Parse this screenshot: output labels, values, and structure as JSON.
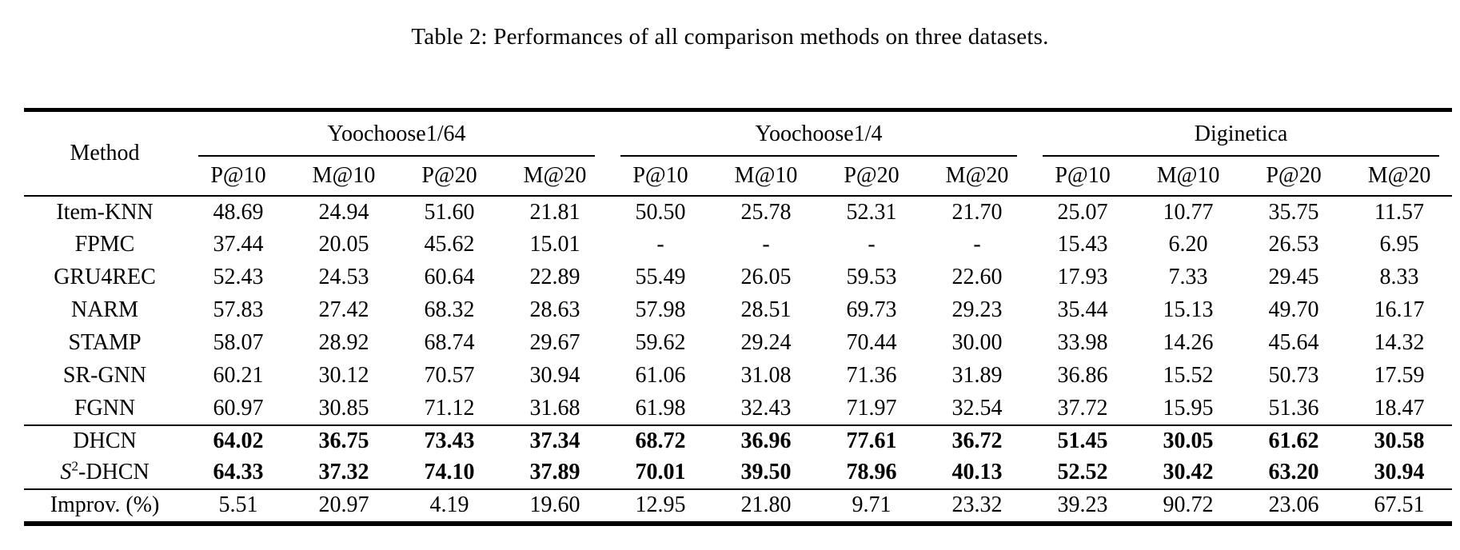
{
  "caption": "Table 2: Performances of all comparison methods on three datasets.",
  "colors": {
    "background": "#ffffff",
    "text": "#000000",
    "rule": "#000000"
  },
  "table": {
    "method_header": "Method",
    "groups": [
      {
        "label": "Yoochoose1/64"
      },
      {
        "label": "Yoochoose1/4"
      },
      {
        "label": "Diginetica"
      }
    ],
    "metric_headers": [
      "P@10",
      "M@10",
      "P@20",
      "M@20"
    ],
    "sections": [
      {
        "name": "baselines",
        "bold_values": false,
        "rows": [
          {
            "method": "Item-KNN",
            "values": [
              "48.69",
              "24.94",
              "51.60",
              "21.81",
              "50.50",
              "25.78",
              "52.31",
              "21.70",
              "25.07",
              "10.77",
              "35.75",
              "11.57"
            ]
          },
          {
            "method": "FPMC",
            "values": [
              "37.44",
              "20.05",
              "45.62",
              "15.01",
              "-",
              "-",
              "-",
              "-",
              "15.43",
              "6.20",
              "26.53",
              "6.95"
            ]
          },
          {
            "method": "GRU4REC",
            "values": [
              "52.43",
              "24.53",
              "60.64",
              "22.89",
              "55.49",
              "26.05",
              "59.53",
              "22.60",
              "17.93",
              "7.33",
              "29.45",
              "8.33"
            ]
          },
          {
            "method": "NARM",
            "values": [
              "57.83",
              "27.42",
              "68.32",
              "28.63",
              "57.98",
              "28.51",
              "69.73",
              "29.23",
              "35.44",
              "15.13",
              "49.70",
              "16.17"
            ]
          },
          {
            "method": "STAMP",
            "values": [
              "58.07",
              "28.92",
              "68.74",
              "29.67",
              "59.62",
              "29.24",
              "70.44",
              "30.00",
              "33.98",
              "14.26",
              "45.64",
              "14.32"
            ]
          },
          {
            "method": "SR-GNN",
            "values": [
              "60.21",
              "30.12",
              "70.57",
              "30.94",
              "61.06",
              "31.08",
              "71.36",
              "31.89",
              "36.86",
              "15.52",
              "50.73",
              "17.59"
            ]
          },
          {
            "method": "FGNN",
            "values": [
              "60.97",
              "30.85",
              "71.12",
              "31.68",
              "61.98",
              "32.43",
              "71.97",
              "32.54",
              "37.72",
              "15.95",
              "51.36",
              "18.47"
            ]
          }
        ]
      },
      {
        "name": "proposed",
        "bold_values": true,
        "rows": [
          {
            "method": "DHCN",
            "values": [
              "64.02",
              "36.75",
              "73.43",
              "37.34",
              "68.72",
              "36.96",
              "77.61",
              "36.72",
              "51.45",
              "30.05",
              "61.62",
              "30.58"
            ]
          },
          {
            "method": "S2-DHCN",
            "method_parts": {
              "base": "S",
              "sup": "2",
              "suffix": "-DHCN"
            },
            "values": [
              "64.33",
              "37.32",
              "74.10",
              "37.89",
              "70.01",
              "39.50",
              "78.96",
              "40.13",
              "52.52",
              "30.42",
              "63.20",
              "30.94"
            ]
          }
        ]
      },
      {
        "name": "improvement",
        "bold_values": false,
        "rows": [
          {
            "method": "Improv. (%)",
            "values": [
              "5.51",
              "20.97",
              "4.19",
              "19.60",
              "12.95",
              "21.80",
              "9.71",
              "23.32",
              "39.23",
              "90.72",
              "23.06",
              "67.51"
            ]
          }
        ]
      }
    ]
  }
}
